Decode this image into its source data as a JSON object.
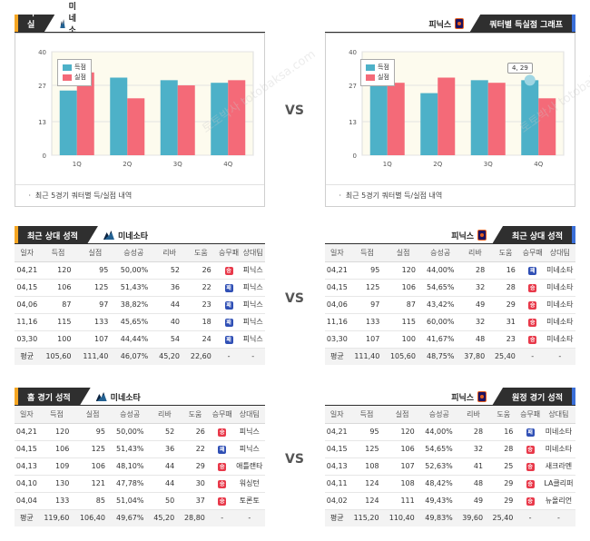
{
  "vs_label": "VS",
  "watermark": "토토박사 totobaksa.com",
  "colors": {
    "score": "#4db1c8",
    "allowed": "#f46a78"
  },
  "chart_section_title": "쿼터별 득실점 그래프",
  "chart_foot": "ㆍ 최근 5경기 쿼터별 득/실점 내역",
  "legend": {
    "score": "득점",
    "allowed": "실점"
  },
  "recent_title": "최근 상대 성적",
  "home_title": "홈 경기 성적",
  "away_title": "원정 경기 성적",
  "teams": {
    "left": "미네소타",
    "right": "피닉스"
  },
  "table_headers": [
    "일자",
    "득점",
    "실점",
    "승성공",
    "리바",
    "도움",
    "승무패",
    "상대팀"
  ],
  "tooltip": "4, 29",
  "chart_data": [
    {
      "type": "bar",
      "categories": [
        "1Q",
        "2Q",
        "3Q",
        "4Q"
      ],
      "ylim": [
        0,
        40
      ],
      "yticks": [
        0,
        13,
        27,
        40
      ],
      "series": [
        {
          "name": "득점",
          "values": [
            25,
            30,
            29,
            28
          ]
        },
        {
          "name": "실점",
          "values": [
            32,
            22,
            27,
            29
          ]
        }
      ]
    },
    {
      "type": "bar",
      "categories": [
        "1Q",
        "2Q",
        "3Q",
        "4Q"
      ],
      "ylim": [
        0,
        40
      ],
      "yticks": [
        0,
        13,
        27,
        40
      ],
      "series": [
        {
          "name": "득점",
          "values": [
            27,
            24,
            29,
            29
          ]
        },
        {
          "name": "실점",
          "values": [
            28,
            30,
            28,
            22
          ]
        }
      ]
    }
  ],
  "recent_left": {
    "rows": [
      [
        "04,21",
        "120",
        "95",
        "50,00%",
        "52",
        "26",
        "w",
        "피닉스"
      ],
      [
        "04,15",
        "106",
        "125",
        "51,43%",
        "36",
        "22",
        "l",
        "피닉스"
      ],
      [
        "04,06",
        "87",
        "97",
        "38,82%",
        "44",
        "23",
        "l",
        "피닉스"
      ],
      [
        "11,16",
        "115",
        "133",
        "45,65%",
        "40",
        "18",
        "l",
        "피닉스"
      ],
      [
        "03,30",
        "100",
        "107",
        "44,44%",
        "54",
        "24",
        "l",
        "피닉스"
      ]
    ],
    "avg": [
      "평균",
      "105,60",
      "111,40",
      "46,07%",
      "45,20",
      "22,60",
      "-",
      "-"
    ]
  },
  "recent_right": {
    "rows": [
      [
        "04,21",
        "95",
        "120",
        "44,00%",
        "28",
        "16",
        "l",
        "미네소타"
      ],
      [
        "04,15",
        "125",
        "106",
        "54,65%",
        "32",
        "28",
        "w",
        "미네소타"
      ],
      [
        "04,06",
        "97",
        "87",
        "43,42%",
        "49",
        "29",
        "w",
        "미네소타"
      ],
      [
        "11,16",
        "133",
        "115",
        "60,00%",
        "32",
        "31",
        "w",
        "미네소타"
      ],
      [
        "03,30",
        "107",
        "100",
        "41,67%",
        "48",
        "23",
        "w",
        "미네소타"
      ]
    ],
    "avg": [
      "평균",
      "111,40",
      "105,60",
      "48,75%",
      "37,80",
      "25,40",
      "-",
      "-"
    ]
  },
  "home_left": {
    "rows": [
      [
        "04,21",
        "120",
        "95",
        "50,00%",
        "52",
        "26",
        "w",
        "피닉스"
      ],
      [
        "04,15",
        "106",
        "125",
        "51,43%",
        "36",
        "22",
        "l",
        "피닉스"
      ],
      [
        "04,13",
        "109",
        "106",
        "48,10%",
        "44",
        "29",
        "w",
        "애틀랜타"
      ],
      [
        "04,10",
        "130",
        "121",
        "47,78%",
        "44",
        "30",
        "w",
        "워싱턴"
      ],
      [
        "04,04",
        "133",
        "85",
        "51,04%",
        "50",
        "37",
        "w",
        "토론토"
      ]
    ],
    "avg": [
      "평균",
      "119,60",
      "106,40",
      "49,67%",
      "45,20",
      "28,80",
      "-",
      "-"
    ]
  },
  "away_right": {
    "rows": [
      [
        "04,21",
        "95",
        "120",
        "44,00%",
        "28",
        "16",
        "l",
        "미네소타"
      ],
      [
        "04,15",
        "125",
        "106",
        "54,65%",
        "32",
        "28",
        "w",
        "미네소타"
      ],
      [
        "04,13",
        "108",
        "107",
        "52,63%",
        "41",
        "25",
        "w",
        "새크라멘"
      ],
      [
        "04,11",
        "124",
        "108",
        "48,42%",
        "48",
        "29",
        "w",
        "LA클리퍼"
      ],
      [
        "04,02",
        "124",
        "111",
        "49,43%",
        "49",
        "29",
        "w",
        "뉴올리언"
      ]
    ],
    "avg": [
      "평균",
      "115,20",
      "110,40",
      "49,83%",
      "39,60",
      "25,40",
      "-",
      "-"
    ]
  }
}
